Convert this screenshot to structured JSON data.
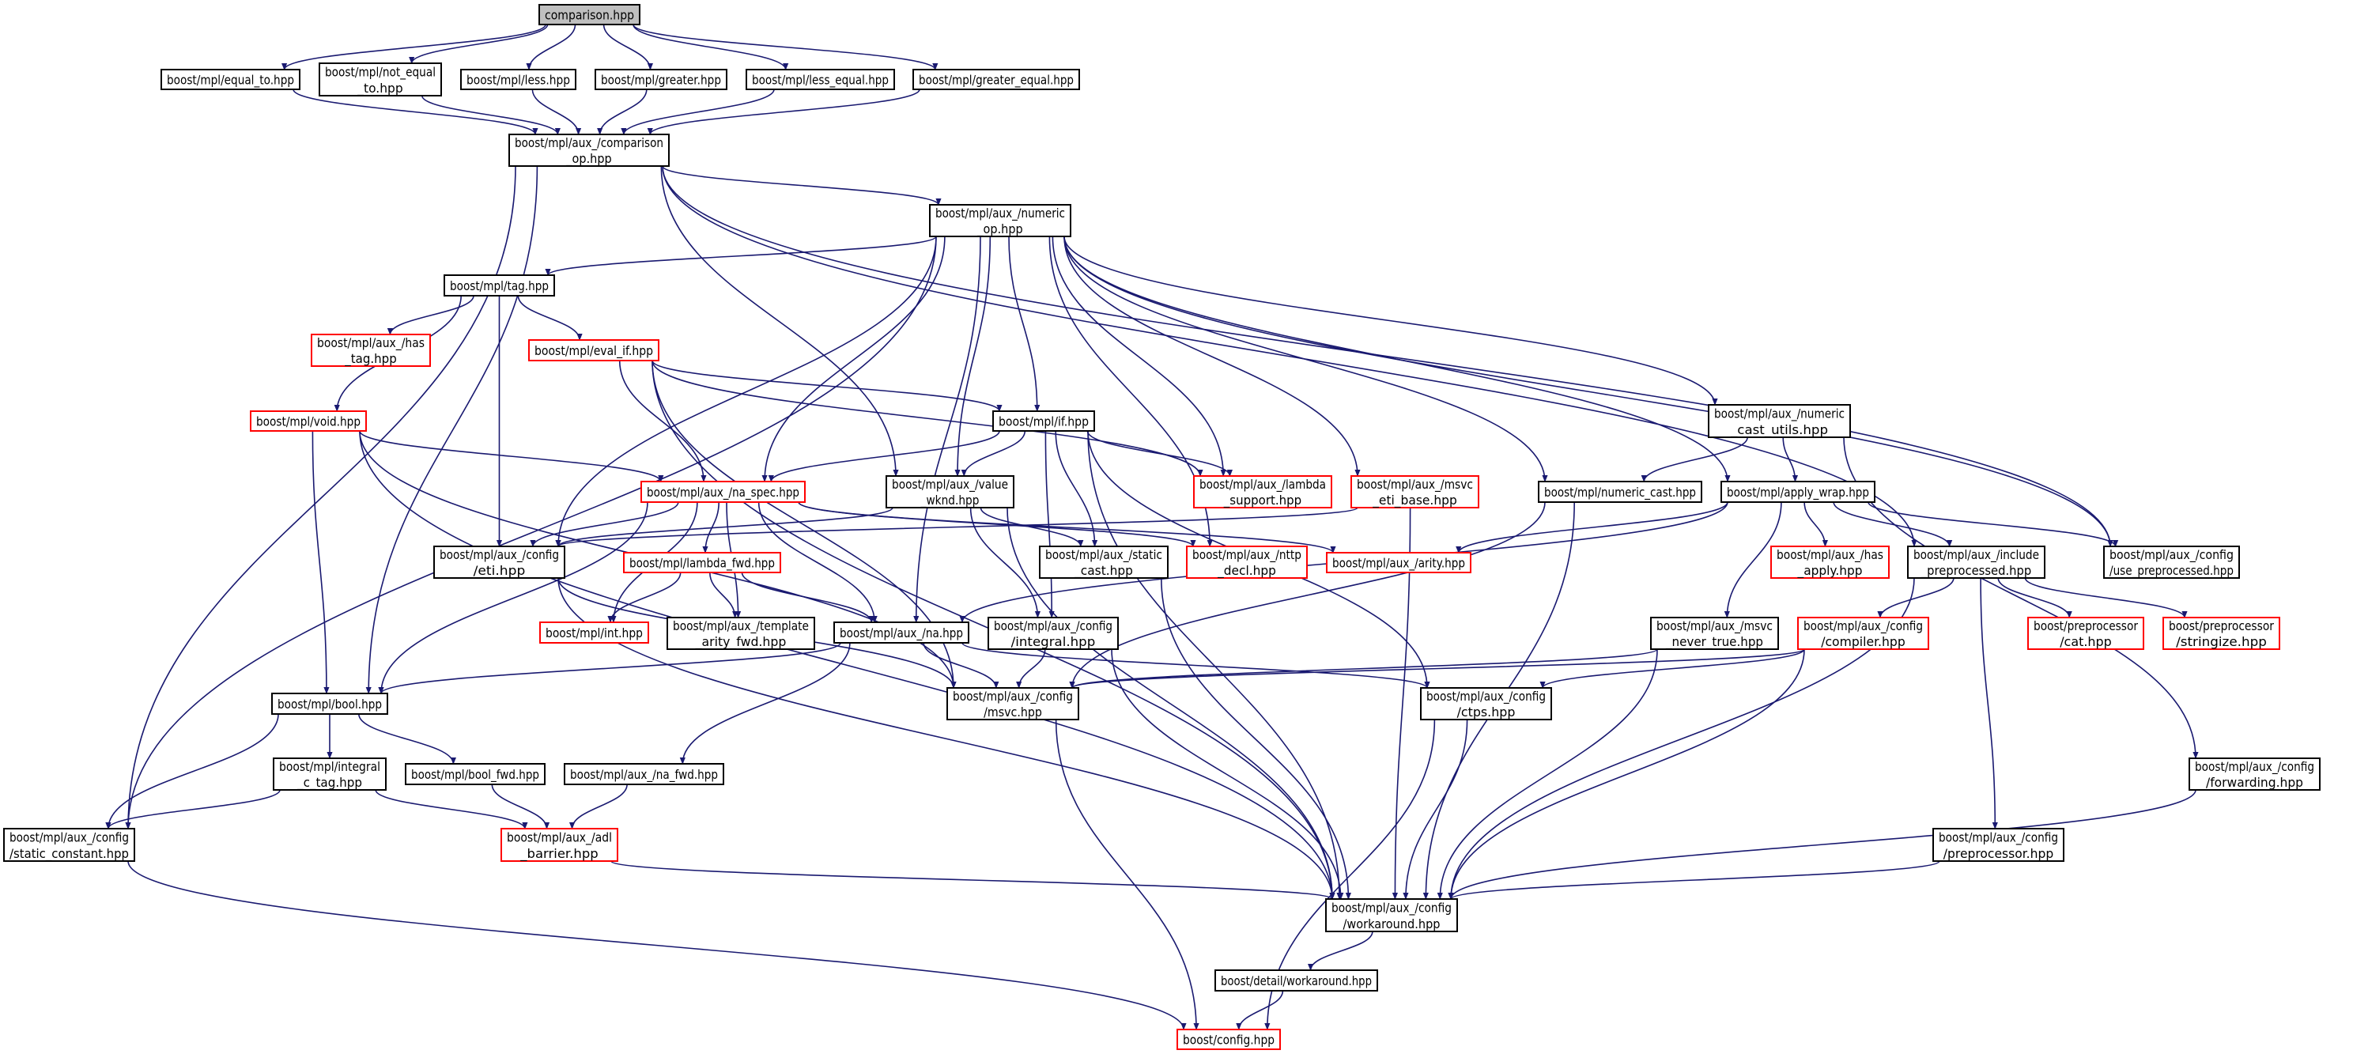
{
  "graph": {
    "colors": {
      "edge": "#191970",
      "root_fill": "#bfbfbf",
      "missing_border": "#ff0000",
      "normal_border": "#000000"
    },
    "nodes": [
      {
        "id": "comparison",
        "lines": [
          "comparison.hpp"
        ],
        "kind": "root"
      },
      {
        "id": "equal_to",
        "lines": [
          "boost/mpl/equal_to.hpp"
        ],
        "kind": "normal"
      },
      {
        "id": "not_equal_to",
        "lines": [
          "boost/mpl/not_equal",
          "_to.hpp"
        ],
        "kind": "normal"
      },
      {
        "id": "less",
        "lines": [
          "boost/mpl/less.hpp"
        ],
        "kind": "normal"
      },
      {
        "id": "greater",
        "lines": [
          "boost/mpl/greater.hpp"
        ],
        "kind": "normal"
      },
      {
        "id": "less_equal",
        "lines": [
          "boost/mpl/less_equal.hpp"
        ],
        "kind": "normal"
      },
      {
        "id": "greater_equal",
        "lines": [
          "boost/mpl/greater_equal.hpp"
        ],
        "kind": "normal"
      },
      {
        "id": "comparison_op",
        "lines": [
          "boost/mpl/aux_/comparison",
          "_op.hpp"
        ],
        "kind": "normal"
      },
      {
        "id": "numeric_op",
        "lines": [
          "boost/mpl/aux_/numeric",
          "_op.hpp"
        ],
        "kind": "normal"
      },
      {
        "id": "tag",
        "lines": [
          "boost/mpl/tag.hpp"
        ],
        "kind": "normal"
      },
      {
        "id": "has_tag",
        "lines": [
          "boost/mpl/aux_/has",
          "_tag.hpp"
        ],
        "kind": "missing"
      },
      {
        "id": "eval_if",
        "lines": [
          "boost/mpl/eval_if.hpp"
        ],
        "kind": "missing"
      },
      {
        "id": "void",
        "lines": [
          "boost/mpl/void.hpp"
        ],
        "kind": "missing"
      },
      {
        "id": "if",
        "lines": [
          "boost/mpl/if.hpp"
        ],
        "kind": "normal"
      },
      {
        "id": "na_spec",
        "lines": [
          "boost/mpl/aux_/na_spec.hpp"
        ],
        "kind": "missing"
      },
      {
        "id": "value_wknd",
        "lines": [
          "boost/mpl/aux_/value",
          "_wknd.hpp"
        ],
        "kind": "normal"
      },
      {
        "id": "lambda_support",
        "lines": [
          "boost/mpl/aux_/lambda",
          "_support.hpp"
        ],
        "kind": "missing"
      },
      {
        "id": "msvc_eti_base",
        "lines": [
          "boost/mpl/aux_/msvc",
          "_eti_base.hpp"
        ],
        "kind": "missing"
      },
      {
        "id": "numeric_cast_utils",
        "lines": [
          "boost/mpl/aux_/numeric",
          "_cast_utils.hpp"
        ],
        "kind": "normal"
      },
      {
        "id": "numeric_cast",
        "lines": [
          "boost/mpl/numeric_cast.hpp"
        ],
        "kind": "normal"
      },
      {
        "id": "apply_wrap",
        "lines": [
          "boost/mpl/apply_wrap.hpp"
        ],
        "kind": "normal"
      },
      {
        "id": "eti",
        "lines": [
          "boost/mpl/aux_/config",
          "/eti.hpp"
        ],
        "kind": "normal"
      },
      {
        "id": "lambda_fwd",
        "lines": [
          "boost/mpl/lambda_fwd.hpp"
        ],
        "kind": "missing"
      },
      {
        "id": "int",
        "lines": [
          "boost/mpl/int.hpp"
        ],
        "kind": "missing"
      },
      {
        "id": "template_arity_fwd",
        "lines": [
          "boost/mpl/aux_/template",
          "_arity_fwd.hpp"
        ],
        "kind": "normal"
      },
      {
        "id": "na",
        "lines": [
          "boost/mpl/aux_/na.hpp"
        ],
        "kind": "normal"
      },
      {
        "id": "integral",
        "lines": [
          "boost/mpl/aux_/config",
          "/integral.hpp"
        ],
        "kind": "normal"
      },
      {
        "id": "static_cast",
        "lines": [
          "boost/mpl/aux_/static",
          "_cast.hpp"
        ],
        "kind": "normal"
      },
      {
        "id": "mttp_decl",
        "lines": [
          "boost/mpl/aux_/nttp",
          "_decl.hpp"
        ],
        "kind": "missing"
      },
      {
        "id": "arity",
        "lines": [
          "boost/mpl/aux_/arity.hpp"
        ],
        "kind": "missing"
      },
      {
        "id": "has_apply",
        "lines": [
          "boost/mpl/aux_/has",
          "_apply.hpp"
        ],
        "kind": "missing"
      },
      {
        "id": "include_preprocessed",
        "lines": [
          "boost/mpl/aux_/include",
          "_preprocessed.hpp"
        ],
        "kind": "normal"
      },
      {
        "id": "use_preprocessed",
        "lines": [
          "boost/mpl/aux_/config",
          "/use_preprocessed.hpp"
        ],
        "kind": "normal"
      },
      {
        "id": "msvc_never_true",
        "lines": [
          "boost/mpl/aux_/msvc",
          "_never_true.hpp"
        ],
        "kind": "normal"
      },
      {
        "id": "compiler",
        "lines": [
          "boost/mpl/aux_/config",
          "/compiler.hpp"
        ],
        "kind": "missing"
      },
      {
        "id": "cat",
        "lines": [
          "boost/preprocessor",
          "/cat.hpp"
        ],
        "kind": "missing"
      },
      {
        "id": "stringize",
        "lines": [
          "boost/preprocessor",
          "/stringize.hpp"
        ],
        "kind": "missing"
      },
      {
        "id": "bool",
        "lines": [
          "boost/mpl/bool.hpp"
        ],
        "kind": "normal"
      },
      {
        "id": "msvc",
        "lines": [
          "boost/mpl/aux_/config",
          "/msvc.hpp"
        ],
        "kind": "normal"
      },
      {
        "id": "ctps",
        "lines": [
          "boost/mpl/aux_/config",
          "/ctps.hpp"
        ],
        "kind": "normal"
      },
      {
        "id": "integral_c_tag",
        "lines": [
          "boost/mpl/integral",
          "_c_tag.hpp"
        ],
        "kind": "normal"
      },
      {
        "id": "bool_fwd",
        "lines": [
          "boost/mpl/bool_fwd.hpp"
        ],
        "kind": "normal"
      },
      {
        "id": "na_fwd",
        "lines": [
          "boost/mpl/aux_/na_fwd.hpp"
        ],
        "kind": "normal"
      },
      {
        "id": "forwarding",
        "lines": [
          "boost/mpl/aux_/config",
          "/forwarding.hpp"
        ],
        "kind": "normal"
      },
      {
        "id": "static_constant",
        "lines": [
          "boost/mpl/aux_/config",
          "/static_constant.hpp"
        ],
        "kind": "normal"
      },
      {
        "id": "adl_barrier",
        "lines": [
          "boost/mpl/aux_/adl",
          "_barrier.hpp"
        ],
        "kind": "missing"
      },
      {
        "id": "preprocessor",
        "lines": [
          "boost/mpl/aux_/config",
          "/preprocessor.hpp"
        ],
        "kind": "normal"
      },
      {
        "id": "workaround",
        "lines": [
          "boost/mpl/aux_/config",
          "/workaround.hpp"
        ],
        "kind": "normal"
      },
      {
        "id": "detail_workaround",
        "lines": [
          "boost/detail/workaround.hpp"
        ],
        "kind": "normal"
      },
      {
        "id": "config",
        "lines": [
          "boost/config.hpp"
        ],
        "kind": "missing"
      }
    ],
    "edges": [
      [
        "comparison",
        "equal_to"
      ],
      [
        "comparison",
        "not_equal_to"
      ],
      [
        "comparison",
        "less"
      ],
      [
        "comparison",
        "greater"
      ],
      [
        "comparison",
        "less_equal"
      ],
      [
        "comparison",
        "greater_equal"
      ],
      [
        "equal_to",
        "comparison_op"
      ],
      [
        "not_equal_to",
        "comparison_op"
      ],
      [
        "less",
        "comparison_op"
      ],
      [
        "greater",
        "comparison_op"
      ],
      [
        "less_equal",
        "comparison_op"
      ],
      [
        "greater_equal",
        "comparison_op"
      ],
      [
        "comparison_op",
        "numeric_op"
      ],
      [
        "comparison_op",
        "static_constant"
      ],
      [
        "comparison_op",
        "bool"
      ],
      [
        "comparison_op",
        "value_wknd"
      ],
      [
        "comparison_op",
        "include_preprocessed"
      ],
      [
        "comparison_op",
        "use_preprocessed"
      ],
      [
        "numeric_op",
        "tag"
      ],
      [
        "numeric_op",
        "static_constant"
      ],
      [
        "numeric_op",
        "eti"
      ],
      [
        "numeric_op",
        "na_spec"
      ],
      [
        "numeric_op",
        "na"
      ],
      [
        "numeric_op",
        "value_wknd"
      ],
      [
        "numeric_op",
        "if"
      ],
      [
        "numeric_op",
        "lambda_support"
      ],
      [
        "numeric_op",
        "mttp_decl"
      ],
      [
        "numeric_op",
        "msvc_eti_base"
      ],
      [
        "numeric_op",
        "numeric_cast"
      ],
      [
        "numeric_op",
        "numeric_cast_utils"
      ],
      [
        "numeric_op",
        "apply_wrap"
      ],
      [
        "numeric_op",
        "use_preprocessed"
      ],
      [
        "tag",
        "has_tag"
      ],
      [
        "tag",
        "eval_if"
      ],
      [
        "tag",
        "void"
      ],
      [
        "tag",
        "eti"
      ],
      [
        "eval_if",
        "if"
      ],
      [
        "eval_if",
        "na_spec"
      ],
      [
        "eval_if",
        "lambda_support"
      ],
      [
        "eval_if",
        "msvc"
      ],
      [
        "eval_if",
        "workaround"
      ],
      [
        "void",
        "na_spec"
      ],
      [
        "void",
        "bool"
      ],
      [
        "void",
        "msvc"
      ],
      [
        "void",
        "workaround"
      ],
      [
        "if",
        "na_spec"
      ],
      [
        "if",
        "value_wknd"
      ],
      [
        "if",
        "lambda_support"
      ],
      [
        "if",
        "static_cast"
      ],
      [
        "if",
        "integral"
      ],
      [
        "if",
        "ctps"
      ],
      [
        "if",
        "workaround"
      ],
      [
        "value_wknd",
        "eti"
      ],
      [
        "value_wknd",
        "integral"
      ],
      [
        "value_wknd",
        "static_cast"
      ],
      [
        "value_wknd",
        "workaround"
      ],
      [
        "na_spec",
        "eti"
      ],
      [
        "na_spec",
        "bool"
      ],
      [
        "na_spec",
        "int"
      ],
      [
        "na_spec",
        "lambda_fwd"
      ],
      [
        "na_spec",
        "template_arity_fwd"
      ],
      [
        "na_spec",
        "na"
      ],
      [
        "na_spec",
        "arity"
      ],
      [
        "na_spec",
        "mttp_decl"
      ],
      [
        "msvc_eti_base",
        "eti"
      ],
      [
        "msvc_eti_base",
        "workaround"
      ],
      [
        "numeric_cast_utils",
        "numeric_cast"
      ],
      [
        "numeric_cast_utils",
        "apply_wrap"
      ],
      [
        "numeric_cast_utils",
        "forwarding"
      ],
      [
        "numeric_cast",
        "msvc"
      ],
      [
        "numeric_cast",
        "workaround"
      ],
      [
        "apply_wrap",
        "arity"
      ],
      [
        "apply_wrap",
        "na"
      ],
      [
        "apply_wrap",
        "has_apply"
      ],
      [
        "apply_wrap",
        "include_preprocessed"
      ],
      [
        "apply_wrap",
        "use_preprocessed"
      ],
      [
        "apply_wrap",
        "msvc_never_true"
      ],
      [
        "eti",
        "msvc"
      ],
      [
        "eti",
        "workaround"
      ],
      [
        "lambda_fwd",
        "int"
      ],
      [
        "lambda_fwd",
        "template_arity_fwd"
      ],
      [
        "lambda_fwd",
        "na"
      ],
      [
        "na",
        "bool"
      ],
      [
        "na",
        "msvc"
      ],
      [
        "na",
        "na_fwd"
      ],
      [
        "na",
        "ctps"
      ],
      [
        "integral",
        "msvc"
      ],
      [
        "integral",
        "workaround"
      ],
      [
        "static_cast",
        "workaround"
      ],
      [
        "bool",
        "static_constant"
      ],
      [
        "bool",
        "integral_c_tag"
      ],
      [
        "bool",
        "bool_fwd"
      ],
      [
        "integral_c_tag",
        "static_constant"
      ],
      [
        "integral_c_tag",
        "adl_barrier"
      ],
      [
        "bool_fwd",
        "adl_barrier"
      ],
      [
        "na_fwd",
        "adl_barrier"
      ],
      [
        "adl_barrier",
        "workaround"
      ],
      [
        "static_constant",
        "config"
      ],
      [
        "msvc",
        "config"
      ],
      [
        "msvc_never_true",
        "msvc"
      ],
      [
        "msvc_never_true",
        "workaround"
      ],
      [
        "compiler",
        "msvc"
      ],
      [
        "compiler",
        "ctps"
      ],
      [
        "compiler",
        "workaround"
      ],
      [
        "include_preprocessed",
        "compiler"
      ],
      [
        "include_preprocessed",
        "cat"
      ],
      [
        "include_preprocessed",
        "stringize"
      ],
      [
        "include_preprocessed",
        "preprocessor"
      ],
      [
        "include_preprocessed",
        "workaround"
      ],
      [
        "ctps",
        "workaround"
      ],
      [
        "ctps",
        "config"
      ],
      [
        "preprocessor",
        "workaround"
      ],
      [
        "forwarding",
        "workaround"
      ],
      [
        "workaround",
        "detail_workaround"
      ],
      [
        "detail_workaround",
        "config"
      ]
    ]
  }
}
